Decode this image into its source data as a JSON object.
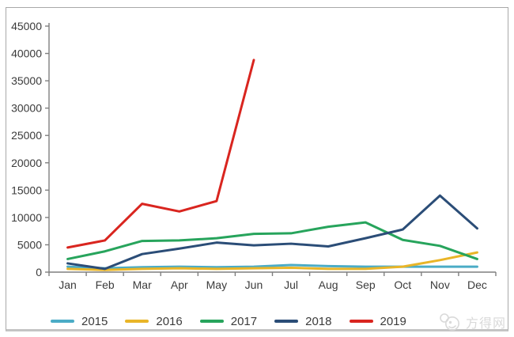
{
  "frame": {
    "border_color": "#a9a9a9",
    "background": "#ffffff"
  },
  "chart_data": {
    "type": "line",
    "title": "",
    "xlabel": "",
    "ylabel": "",
    "x": [
      "Jan",
      "Feb",
      "Mar",
      "Apr",
      "May",
      "Jun",
      "Jul",
      "Aug",
      "Sep",
      "Oct",
      "Nov",
      "Dec"
    ],
    "ylim": [
      0,
      45000
    ],
    "yticks": [
      0,
      5000,
      10000,
      15000,
      20000,
      25000,
      30000,
      35000,
      40000,
      45000
    ],
    "grid": false,
    "legend_position": "bottom",
    "axis_color": "#7f7f7f",
    "tick_label_color": "#3b3b3b",
    "series": [
      {
        "name": "2015",
        "color": "#4bacc6",
        "values": [
          1000,
          700,
          900,
          1000,
          900,
          1000,
          1300,
          1100,
          1000,
          1000,
          1000,
          1000
        ]
      },
      {
        "name": "2016",
        "color": "#e9b528",
        "values": [
          600,
          400,
          600,
          700,
          600,
          700,
          800,
          600,
          600,
          1000,
          2200,
          3600
        ]
      },
      {
        "name": "2017",
        "color": "#27a45c",
        "values": [
          2400,
          3800,
          5700,
          5800,
          6200,
          7000,
          7100,
          8300,
          9100,
          5900,
          4800,
          2400
        ]
      },
      {
        "name": "2018",
        "color": "#2b4d77",
        "values": [
          1600,
          600,
          3300,
          4300,
          5400,
          4900,
          5200,
          4700,
          6200,
          7800,
          14000,
          8000
        ]
      },
      {
        "name": "2019",
        "color": "#d9251f",
        "values": [
          4500,
          5800,
          12500,
          11100,
          13000,
          38800
        ]
      }
    ]
  },
  "watermark": {
    "text": "方得网",
    "color": "#d9d9d9"
  }
}
